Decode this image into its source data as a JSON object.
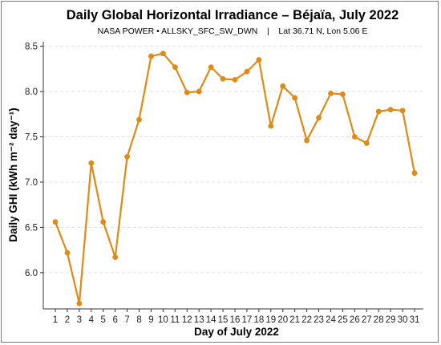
{
  "chart_data": {
    "type": "line",
    "title": "Daily Global Horizontal Irradiance – Béjaïa, July 2022",
    "subtitle": "NASA POWER • ALLSKY_SFC_SW_DWN    |    Lat 36.71 N, Lon 5.06 E",
    "xlabel": "Day of July 2022",
    "ylabel": "Daily GHI (kWh m⁻² day⁻¹)",
    "ylim": [
      5.6,
      8.55
    ],
    "yticks": [
      6.0,
      6.5,
      7.0,
      7.5,
      8.0,
      8.5
    ],
    "ytick_labels": [
      "6.0",
      "6.5",
      "7.0",
      "7.5",
      "8.0",
      "8.5"
    ],
    "grid": "horizontal dashed",
    "color": "#e08a14",
    "x": [
      1,
      2,
      3,
      4,
      5,
      6,
      7,
      8,
      9,
      10,
      11,
      12,
      13,
      14,
      15,
      16,
      17,
      18,
      19,
      20,
      21,
      22,
      23,
      24,
      25,
      26,
      27,
      28,
      29,
      30,
      31
    ],
    "x_labels": [
      "1",
      "2",
      "3",
      "4",
      "5",
      "6",
      "7",
      "8",
      "9",
      "10",
      "11",
      "12",
      "13",
      "14",
      "15",
      "16",
      "17",
      "18",
      "19",
      "20",
      "21",
      "22",
      "23",
      "24",
      "25",
      "26",
      "27",
      "28",
      "29",
      "30",
      "31"
    ],
    "y": [
      6.56,
      6.22,
      5.66,
      7.21,
      6.56,
      6.17,
      7.28,
      7.69,
      8.39,
      8.42,
      8.27,
      7.99,
      8.0,
      8.27,
      8.14,
      8.13,
      8.22,
      8.35,
      7.62,
      8.06,
      7.93,
      7.46,
      7.71,
      7.98,
      7.97,
      7.5,
      7.43,
      7.78,
      7.8,
      7.79,
      7.1
    ]
  }
}
